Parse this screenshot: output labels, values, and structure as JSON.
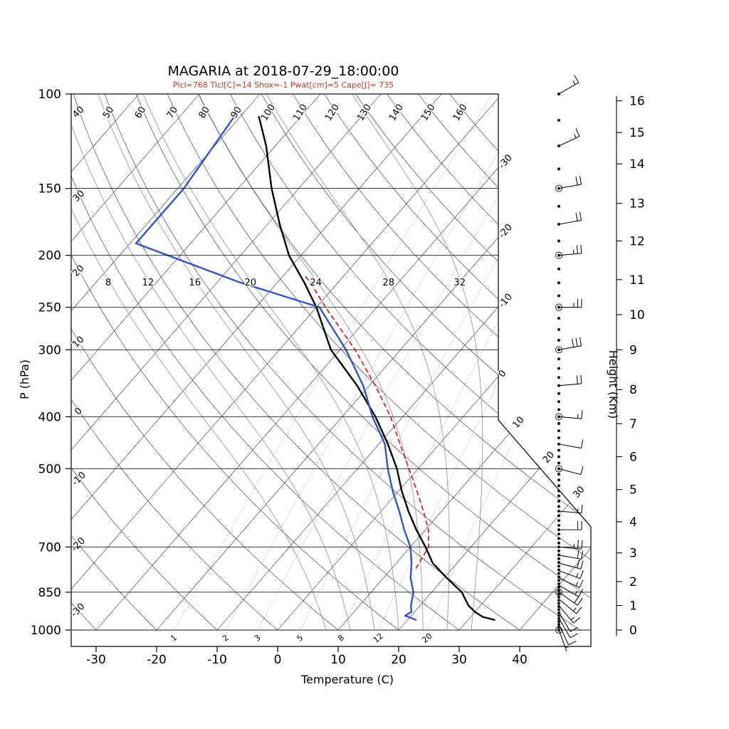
{
  "title": "MAGARIA at 2018-07-29_18:00:00",
  "subtitle": "Plcl=768 Tlcl[C]=14 Shox=-1 Pwat[cm]=5 Cape[J]= 735",
  "diagnostics": {
    "plcl_hpa": 768,
    "tlcl_c": 14,
    "showalter_index": -1,
    "pwat_cm": 5,
    "cape_j": 735
  },
  "axes": {
    "x_label": "Temperature (C)",
    "y_left_label": "P (hPa)",
    "y_right_label": "Height (Km)",
    "pressure_ticks": [
      100,
      150,
      200,
      250,
      300,
      400,
      500,
      700,
      850,
      1000
    ],
    "temp_ticks": [
      -30,
      -20,
      -10,
      0,
      10,
      20,
      30,
      40
    ],
    "height_km_ticks": [
      {
        "km": 0,
        "p": 1000
      },
      {
        "km": 1,
        "p": 900
      },
      {
        "km": 2,
        "p": 812
      },
      {
        "km": 3,
        "p": 718
      },
      {
        "km": 4,
        "p": 628
      },
      {
        "km": 5,
        "p": 547
      },
      {
        "km": 6,
        "p": 475
      },
      {
        "km": 7,
        "p": 412
      },
      {
        "km": 8,
        "p": 356
      },
      {
        "km": 9,
        "p": 300
      },
      {
        "km": 10,
        "p": 258
      },
      {
        "km": 11,
        "p": 222
      },
      {
        "km": 12,
        "p": 188
      },
      {
        "km": 13,
        "p": 160
      },
      {
        "km": 14,
        "p": 135
      },
      {
        "km": 15,
        "p": 118
      },
      {
        "km": 16,
        "p": 103
      }
    ]
  },
  "colors": {
    "temperature": "#000000",
    "dewpoint": "#3753c0",
    "parcel": "#d01f1f",
    "subtitle": "#bf3a26",
    "moist_adiabat": "#9a9a9a",
    "mixing_ratio": "#8a8a8a",
    "grid": "#1a1a1a"
  },
  "chart_data": {
    "type": "skewt_logp",
    "pressure_range_hpa": [
      100,
      1050
    ],
    "temp_axis_range_c": [
      -30,
      40
    ],
    "isotherms_c": {
      "start": -100,
      "end": 40,
      "step": 10
    },
    "isotherm_edge_labels_c": [
      -30,
      -20,
      -10,
      0,
      10,
      20,
      30
    ],
    "dry_adiabats_c": {
      "start": -30,
      "end": 160,
      "step": 10,
      "left_labels": [
        -30,
        -20,
        -10,
        0,
        10,
        20,
        30,
        40
      ],
      "top_labels": [
        50,
        60,
        70,
        80,
        90,
        100,
        110,
        120,
        130,
        140,
        150,
        160
      ]
    },
    "moist_adiabats": {
      "values_c": [
        8,
        12,
        16,
        20,
        24,
        28,
        32
      ],
      "label_pressure_hpa": 225
    },
    "mixing_ratio": {
      "values_gkg": [
        1,
        2,
        3,
        5,
        8,
        12,
        20
      ],
      "label_pressure_hpa": 1000
    },
    "series": [
      {
        "name": "temperature",
        "style": "solid_black_thick",
        "points_p_t": [
          [
            958,
            34.5
          ],
          [
            945,
            32
          ],
          [
            925,
            30
          ],
          [
            900,
            28
          ],
          [
            850,
            25
          ],
          [
            800,
            20.5
          ],
          [
            750,
            16
          ],
          [
            700,
            12.5
          ],
          [
            650,
            8.5
          ],
          [
            600,
            4.5
          ],
          [
            550,
            0.5
          ],
          [
            500,
            -3.5
          ],
          [
            450,
            -8.5
          ],
          [
            400,
            -14.5
          ],
          [
            350,
            -22
          ],
          [
            300,
            -31.5
          ],
          [
            250,
            -40
          ],
          [
            225,
            -45.5
          ],
          [
            200,
            -52
          ],
          [
            175,
            -58
          ],
          [
            150,
            -64.5
          ],
          [
            125,
            -71.5
          ],
          [
            110,
            -77
          ]
        ]
      },
      {
        "name": "dewpoint",
        "style": "solid_blue_thick",
        "points_p_t": [
          [
            958,
            21.5
          ],
          [
            940,
            19
          ],
          [
            925,
            19.5
          ],
          [
            900,
            18.5
          ],
          [
            850,
            17
          ],
          [
            800,
            14.5
          ],
          [
            750,
            12.5
          ],
          [
            700,
            10
          ],
          [
            650,
            6.5
          ],
          [
            600,
            3
          ],
          [
            550,
            -1
          ],
          [
            500,
            -5
          ],
          [
            450,
            -9
          ],
          [
            400,
            -15
          ],
          [
            350,
            -21
          ],
          [
            300,
            -29
          ],
          [
            250,
            -39.5
          ],
          [
            225,
            -56
          ],
          [
            190,
            -79
          ],
          [
            150,
            -79
          ],
          [
            110,
            -81
          ]
        ]
      },
      {
        "name": "parcel",
        "style": "dashed_red",
        "points_p_t": [
          [
            768,
            14
          ],
          [
            700,
            13
          ],
          [
            650,
            10.5
          ],
          [
            600,
            7
          ],
          [
            550,
            3
          ],
          [
            500,
            -1.5
          ],
          [
            450,
            -6.5
          ],
          [
            400,
            -12
          ],
          [
            350,
            -19
          ],
          [
            300,
            -27.5
          ],
          [
            250,
            -38.5
          ],
          [
            225,
            -44.5
          ],
          [
            218,
            -46.5
          ]
        ]
      }
    ],
    "wind_barbs": [
      {
        "p": 100,
        "dir": 60,
        "spd": 15
      },
      {
        "p": 125,
        "dir": 65,
        "spd": 15
      },
      {
        "p": 150,
        "dir": 80,
        "spd": 20
      },
      {
        "p": 175,
        "dir": 80,
        "spd": 20
      },
      {
        "p": 200,
        "dir": 85,
        "spd": 25
      },
      {
        "p": 250,
        "dir": 90,
        "spd": 25
      },
      {
        "p": 300,
        "dir": 80,
        "spd": 30
      },
      {
        "p": 350,
        "dir": 85,
        "spd": 20
      },
      {
        "p": 400,
        "dir": 95,
        "spd": 15
      },
      {
        "p": 450,
        "dir": 100,
        "spd": 10
      },
      {
        "p": 500,
        "dir": 105,
        "spd": 10
      },
      {
        "p": 600,
        "dir": 95,
        "spd": 15
      },
      {
        "p": 650,
        "dir": 90,
        "spd": 20
      },
      {
        "p": 700,
        "dir": 95,
        "spd": 25
      },
      {
        "p": 725,
        "dir": 100,
        "spd": 20
      },
      {
        "p": 750,
        "dir": 105,
        "spd": 20
      },
      {
        "p": 775,
        "dir": 110,
        "spd": 15
      },
      {
        "p": 800,
        "dir": 115,
        "spd": 15
      },
      {
        "p": 825,
        "dir": 120,
        "spd": 15
      },
      {
        "p": 850,
        "dir": 125,
        "spd": 20
      },
      {
        "p": 875,
        "dir": 130,
        "spd": 15
      },
      {
        "p": 900,
        "dir": 140,
        "spd": 15
      },
      {
        "p": 925,
        "dir": 150,
        "spd": 10
      },
      {
        "p": 950,
        "dir": 150,
        "spd": 10
      },
      {
        "p": 975,
        "dir": 155,
        "spd": 10
      },
      {
        "p": 1000,
        "dir": 160,
        "spd": 5
      }
    ],
    "station_circle_pressures": [
      150,
      200,
      250,
      300,
      400,
      500,
      850,
      1000
    ],
    "station_dot_pressures": [
      1000,
      988,
      976,
      964,
      952,
      940,
      928,
      916,
      904,
      892,
      880,
      868,
      856,
      844,
      832,
      820,
      808,
      796,
      784,
      772,
      760,
      748,
      736,
      724,
      712,
      700,
      688,
      675,
      662,
      650,
      638,
      625,
      612,
      600,
      588,
      575,
      562,
      550,
      538,
      525,
      512,
      500,
      488,
      475,
      462,
      450,
      438,
      425,
      412,
      400,
      388,
      375,
      362,
      350,
      338,
      325,
      312,
      300,
      288,
      275,
      262,
      250,
      238,
      225,
      212,
      200,
      188,
      175,
      162,
      150,
      138,
      125,
      112,
      100
    ]
  }
}
